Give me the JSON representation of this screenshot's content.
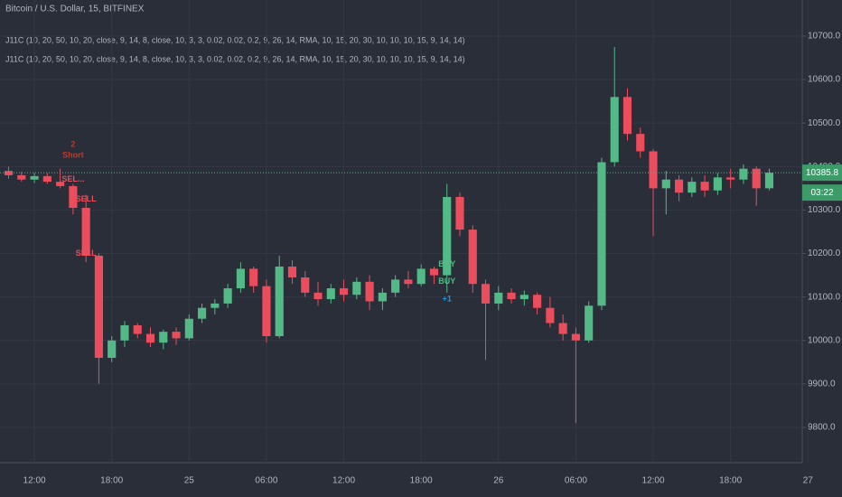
{
  "chart_data": {
    "type": "candlestick",
    "title": "Bitcoin / U.S. Dollar, 15, BITFINEX",
    "indicators": [
      "J11C (10, 20, 50, 10, 20, close, 9, 14, 8, close, 10, 3, 3, 0.02, 0.02, 0.2, 9, 26, 14, RMA, 10, 15, 20, 30, 10, 10, 10, 15, 9, 14, 14)",
      "J11C (10, 20, 50, 10, 20, close, 9, 14, 8, close, 10, 3, 3, 0.02, 0.02, 0.2, 9, 26, 14, RMA, 10, 15, 20, 30, 10, 10, 10, 15, 9, 14, 14)"
    ],
    "categories": [
      null,
      null,
      "12:00",
      null,
      null,
      null,
      null,
      null,
      "18:00",
      null,
      null,
      null,
      null,
      null,
      "25",
      null,
      null,
      null,
      null,
      null,
      "06:00",
      null,
      null,
      null,
      null,
      null,
      "12:00",
      null,
      null,
      null,
      null,
      null,
      "18:00",
      null,
      null,
      null,
      null,
      null,
      "26",
      null,
      null,
      null,
      null,
      null,
      "06:00",
      null,
      null,
      null,
      null,
      null,
      "12:00",
      null,
      null,
      null,
      null,
      null,
      "18:00",
      null,
      null,
      null,
      null,
      null,
      "27"
    ],
    "open": [
      10390,
      10380,
      10370,
      10378,
      10365,
      10355,
      10305,
      10195,
      9960,
      10000,
      10035,
      10015,
      9995,
      10020,
      10005,
      10050,
      10075,
      10085,
      10120,
      10165,
      10125,
      10010,
      10170,
      10145,
      10110,
      10095,
      10120,
      10105,
      10135,
      10090,
      10110,
      10140,
      10130,
      10165,
      10150,
      10330,
      10255,
      10130,
      10085,
      10110,
      10095,
      10105,
      10075,
      10040,
      10015,
      10000,
      10080,
      10410,
      10560,
      10475,
      10435,
      10350,
      10370,
      10340,
      10365,
      10345,
      10375,
      10370,
      10395,
      10350,
      null,
      null,
      null
    ],
    "high": [
      10400,
      10388,
      10385,
      10385,
      10395,
      10360,
      10335,
      10200,
      10010,
      10045,
      10040,
      10030,
      10025,
      10030,
      10060,
      10085,
      10095,
      10130,
      10180,
      10170,
      10140,
      10195,
      10185,
      10160,
      10135,
      10130,
      10140,
      10145,
      10150,
      10120,
      10150,
      10160,
      10175,
      10170,
      10360,
      10340,
      10265,
      10140,
      10125,
      10120,
      10115,
      10110,
      10100,
      10060,
      10030,
      10090,
      10420,
      10675,
      10580,
      10490,
      10440,
      10390,
      10380,
      10375,
      10380,
      10385,
      10395,
      10405,
      10400,
      10395,
      null,
      null,
      null
    ],
    "low": [
      10372,
      10365,
      10362,
      10360,
      10350,
      10290,
      10180,
      9900,
      9950,
      9985,
      10005,
      9985,
      9980,
      9990,
      10000,
      10040,
      10060,
      10075,
      10110,
      10110,
      9995,
      10005,
      10130,
      10100,
      10080,
      10085,
      10090,
      10095,
      10070,
      10070,
      10100,
      10120,
      10125,
      10130,
      10110,
      10240,
      10110,
      9955,
      10070,
      10085,
      10080,
      10060,
      10030,
      10000,
      9810,
      9995,
      10070,
      10400,
      10460,
      10420,
      10240,
      10290,
      10320,
      10330,
      10330,
      10335,
      10350,
      10360,
      10310,
      10345,
      null,
      null,
      null
    ],
    "close": [
      10380,
      10370,
      10378,
      10365,
      10355,
      10305,
      10195,
      9960,
      10000,
      10035,
      10015,
      9995,
      10020,
      10005,
      10050,
      10075,
      10085,
      10120,
      10165,
      10125,
      10010,
      10170,
      10145,
      10110,
      10095,
      10120,
      10105,
      10135,
      10090,
      10110,
      10140,
      10130,
      10165,
      10150,
      10330,
      10255,
      10130,
      10085,
      10110,
      10095,
      10105,
      10075,
      10040,
      10015,
      10000,
      10080,
      10410,
      10560,
      10475,
      10435,
      10350,
      10370,
      10340,
      10365,
      10345,
      10375,
      10370,
      10395,
      10350,
      10385.8,
      null,
      null,
      null
    ],
    "up_color": "#53b987",
    "down_color": "#eb4d5c",
    "ylim": [
      9719,
      10783
    ],
    "yticks": [
      {
        "value": 9800,
        "label": "9800.0"
      },
      {
        "value": 9900,
        "label": "9900.0"
      },
      {
        "value": 10000,
        "label": "10000.0"
      },
      {
        "value": 10100,
        "label": "10100.0"
      },
      {
        "value": 10200,
        "label": "10200.0"
      },
      {
        "value": 10300,
        "label": "10300.0"
      },
      {
        "value": 10400,
        "label": "10400.0"
      },
      {
        "value": 10500,
        "label": "10500.0"
      },
      {
        "value": 10600,
        "label": "10600.0"
      },
      {
        "value": 10700,
        "label": "10700.0"
      }
    ],
    "grid": true,
    "last_price": {
      "value": 10385.8,
      "label": "10385.8"
    },
    "countdown": "03:22",
    "annotations": [
      {
        "text": "2",
        "index": 5,
        "price": 10450,
        "color": "#c0392b"
      },
      {
        "text": "Short",
        "index": 5,
        "price": 10425,
        "color": "#c0392b"
      },
      {
        "text": "SEL...",
        "index": 5,
        "price": 10370,
        "color": "#eb4d5c"
      },
      {
        "text": "SELL",
        "index": 6,
        "price": 10325,
        "color": "#eb4d5c"
      },
      {
        "text": "SELL",
        "index": 6,
        "price": 10200,
        "color": "#eb4d5c"
      },
      {
        "text": "BUY",
        "index": 34,
        "price": 10175,
        "color": "#53b987"
      },
      {
        "text": "BUY",
        "index": 34,
        "price": 10135,
        "color": "#53b987"
      },
      {
        "text": "+1",
        "index": 34,
        "price": 10095,
        "color": "#2d8fd5"
      }
    ]
  }
}
